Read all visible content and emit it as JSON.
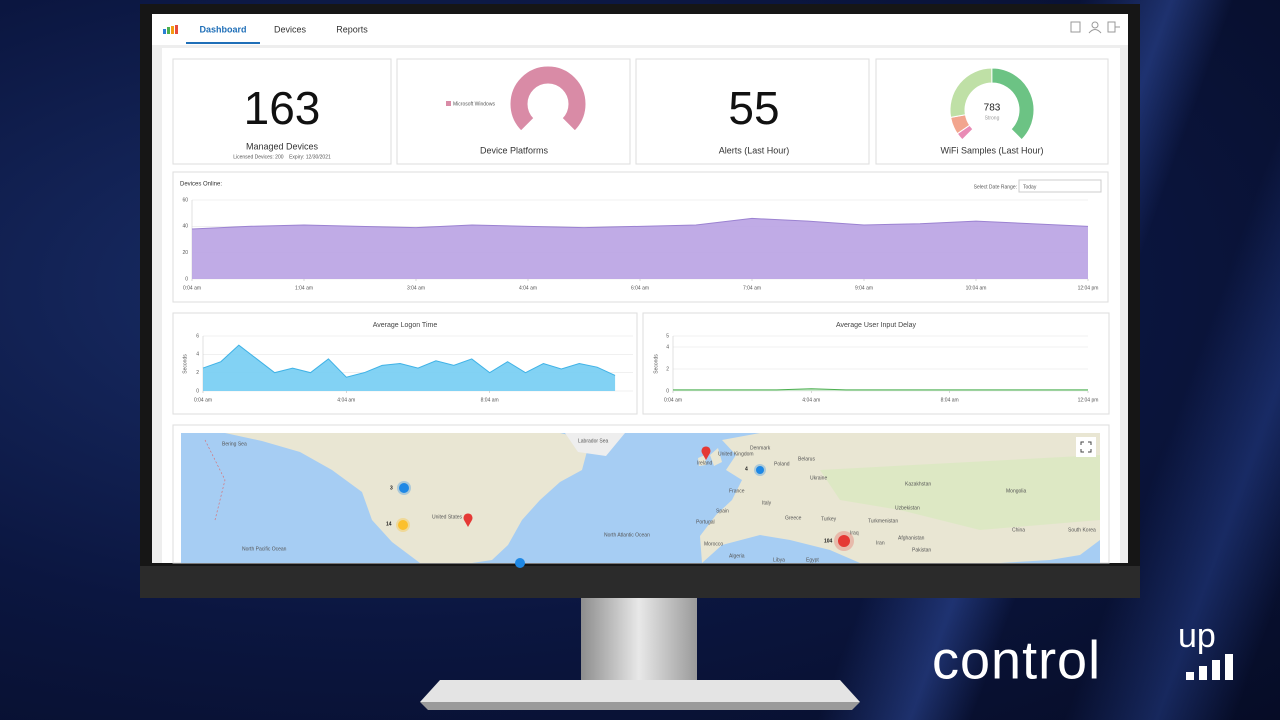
{
  "header": {
    "tabs": [
      "Dashboard",
      "Devices",
      "Reports"
    ]
  },
  "managed_devices": {
    "value": 163,
    "label": "Managed Devices",
    "note": "Licensed Devices: 200    Expiry: 12/30/2021"
  },
  "device_platforms": {
    "type": "pie",
    "title": "Device Platforms",
    "series": [
      {
        "name": "Microsoft Windows",
        "color": "#d98ba6",
        "value": 100
      }
    ]
  },
  "alerts": {
    "value": 55,
    "label": "Alerts (Last Hour)"
  },
  "wifi": {
    "type": "pie",
    "title": "WiFi Samples (Last Hour)",
    "total": 783,
    "total_label": "Strong",
    "segments": [
      {
        "color": "#e98bb5",
        "value": 31
      },
      {
        "color": "#f2a58e",
        "value": 70
      },
      {
        "color": "#bfe0a6",
        "value": 290
      },
      {
        "color": "#6cc384",
        "value": 392
      }
    ]
  },
  "devices_online": {
    "type": "area",
    "title": "Devices Online:",
    "date_range_label": "Select Date Range:",
    "date_range": "Today",
    "color": "#b9a2e3",
    "line_color": "#9b82d1",
    "ylim": [
      0,
      60
    ],
    "yticks": [
      0,
      20,
      40,
      60
    ],
    "xlim": [
      0,
      8
    ],
    "xticks": [
      {
        "value": 0,
        "label": "0:04 am"
      },
      {
        "value": 1,
        "label": "1:04 am"
      },
      {
        "value": 2,
        "label": "3:04 am"
      },
      {
        "value": 3,
        "label": "4:04 am"
      },
      {
        "value": 4,
        "label": "6:04 am"
      },
      {
        "value": 5,
        "label": "7:04 am"
      },
      {
        "value": 6,
        "label": "9:04 am"
      },
      {
        "value": 7,
        "label": "10:04 am"
      },
      {
        "value": 8,
        "label": "12:04 pm"
      }
    ],
    "x": [
      0,
      0.5,
      1,
      1.5,
      2,
      2.5,
      3,
      3.5,
      4,
      4.5,
      5,
      5.5,
      6,
      6.5,
      7,
      7.5,
      8
    ],
    "values": [
      38,
      40,
      41,
      40,
      39,
      41,
      40,
      39,
      40,
      41,
      46,
      44,
      41,
      42,
      44,
      42,
      40
    ]
  },
  "logon_time": {
    "type": "area",
    "title": "Average Logon Time",
    "y_label": "Seconds",
    "color": "#74cdf3",
    "line_color": "#3fb2e6",
    "ylim": [
      0,
      6
    ],
    "yticks": [
      0,
      2,
      4,
      6
    ],
    "xlim": [
      0,
      12
    ],
    "xticks": [
      {
        "value": 0,
        "label": "0:04 am"
      },
      {
        "value": 4,
        "label": "4:04 am"
      },
      {
        "value": 8,
        "label": "8:04 am"
      }
    ],
    "x": [
      0,
      0.5,
      1,
      1.5,
      2,
      2.5,
      3,
      3.5,
      4,
      4.5,
      5,
      5.5,
      6,
      6.5,
      7,
      7.5,
      8,
      8.5,
      9,
      9.5,
      10,
      10.5,
      11,
      11.5
    ],
    "values": [
      2.5,
      3.2,
      5,
      3.5,
      2,
      2.5,
      2,
      3.5,
      1.5,
      2,
      2.8,
      3,
      2.5,
      3.3,
      2.8,
      3.5,
      2,
      3.2,
      2,
      3,
      2.4,
      3,
      2.6,
      1.7
    ]
  },
  "input_delay": {
    "type": "area",
    "title": "Average User Input Delay",
    "y_label": "Seconds",
    "color": "#c8e6c9",
    "line_color": "#4caf50",
    "ylim": [
      0,
      5
    ],
    "yticks": [
      0,
      2,
      4,
      5
    ],
    "xlim": [
      0,
      12
    ],
    "xticks": [
      {
        "value": 0,
        "label": "0:04 am"
      },
      {
        "value": 4,
        "label": "4:04 am"
      },
      {
        "value": 8,
        "label": "8:04 am"
      },
      {
        "value": 12,
        "label": "12:04 pm"
      }
    ],
    "x": [
      0,
      1,
      2,
      3,
      4,
      5,
      6,
      7,
      8,
      9,
      10,
      11,
      12
    ],
    "values": [
      0.1,
      0.1,
      0.1,
      0.1,
      0.2,
      0.1,
      0.1,
      0.1,
      0.1,
      0.1,
      0.1,
      0.1,
      0.1
    ]
  },
  "map": {
    "labels": [
      "Bering Sea",
      "Labrador Sea",
      "North Pacific Ocean",
      "North Atlantic Ocean",
      "United States",
      "Ireland",
      "United Kingdom",
      "Denmark",
      "Poland",
      "Belarus",
      "Ukraine",
      "France",
      "Spain",
      "Portugal",
      "Italy",
      "Greece",
      "Turkey",
      "Morocco",
      "Algeria",
      "Libya",
      "Egypt",
      "Iraq",
      "Iran",
      "Kazakhstan",
      "Mongolia",
      "Uzbekistan",
      "Turkmenistan",
      "Afghanistan",
      "Pakistan",
      "China",
      "South Korea"
    ],
    "clusters": [
      "3",
      "14",
      "104",
      "4"
    ]
  },
  "logo": {
    "word": "control",
    "super": "up"
  }
}
